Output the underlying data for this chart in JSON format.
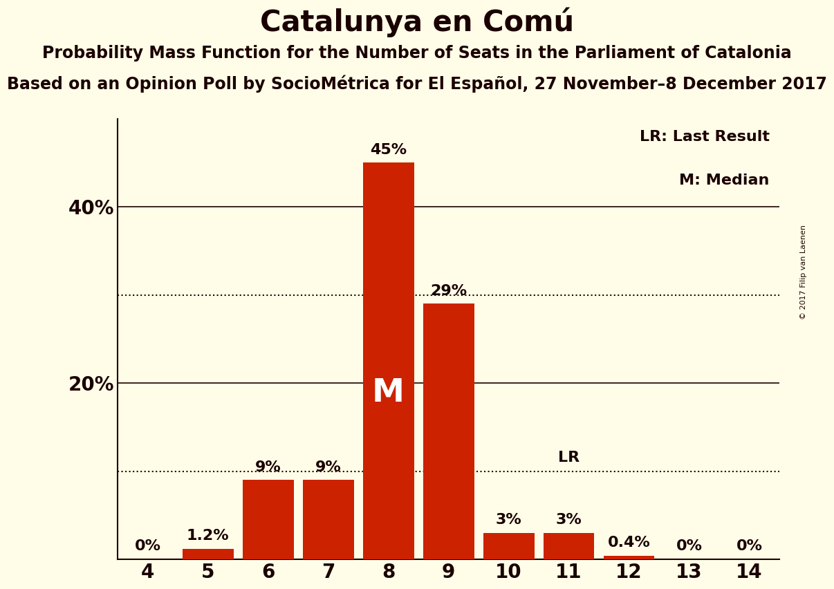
{
  "title": "Catalunya en Comú",
  "subtitle1": "Probability Mass Function for the Number of Seats in the Parliament of Catalonia",
  "subtitle2": "Based on an Opinion Poll by SocioMétrica for El Español, 27 November–8 December 2017",
  "copyright": "© 2017 Filip van Laenen",
  "seats": [
    4,
    5,
    6,
    7,
    8,
    9,
    10,
    11,
    12,
    13,
    14
  ],
  "probabilities": [
    0.0,
    1.2,
    9.0,
    9.0,
    45.0,
    29.0,
    3.0,
    3.0,
    0.4,
    0.0,
    0.0
  ],
  "bar_labels": [
    "0%",
    "1.2%",
    "9%",
    "9%",
    "45%",
    "29%",
    "3%",
    "3%",
    "0.4%",
    "0%",
    "0%"
  ],
  "bar_color": "#CC2200",
  "background_color": "#FFFDE8",
  "text_color": "#1A0000",
  "median_seat": 8,
  "last_result_seat": 11,
  "solid_lines": [
    20.0,
    40.0
  ],
  "dotted_lines": [
    10.0,
    30.0
  ],
  "ylim": [
    0,
    50
  ],
  "yticks": [
    20,
    40
  ],
  "ytick_labels": [
    "20%",
    "40%"
  ],
  "bar_label_fontsize": 16,
  "title_fontsize": 30,
  "subtitle_fontsize": 17,
  "axis_fontsize": 20,
  "median_fontsize": 34,
  "lr_fontsize": 16,
  "legend_fontsize": 16,
  "legend_lr": "LR: Last Result",
  "legend_m": "M: Median"
}
